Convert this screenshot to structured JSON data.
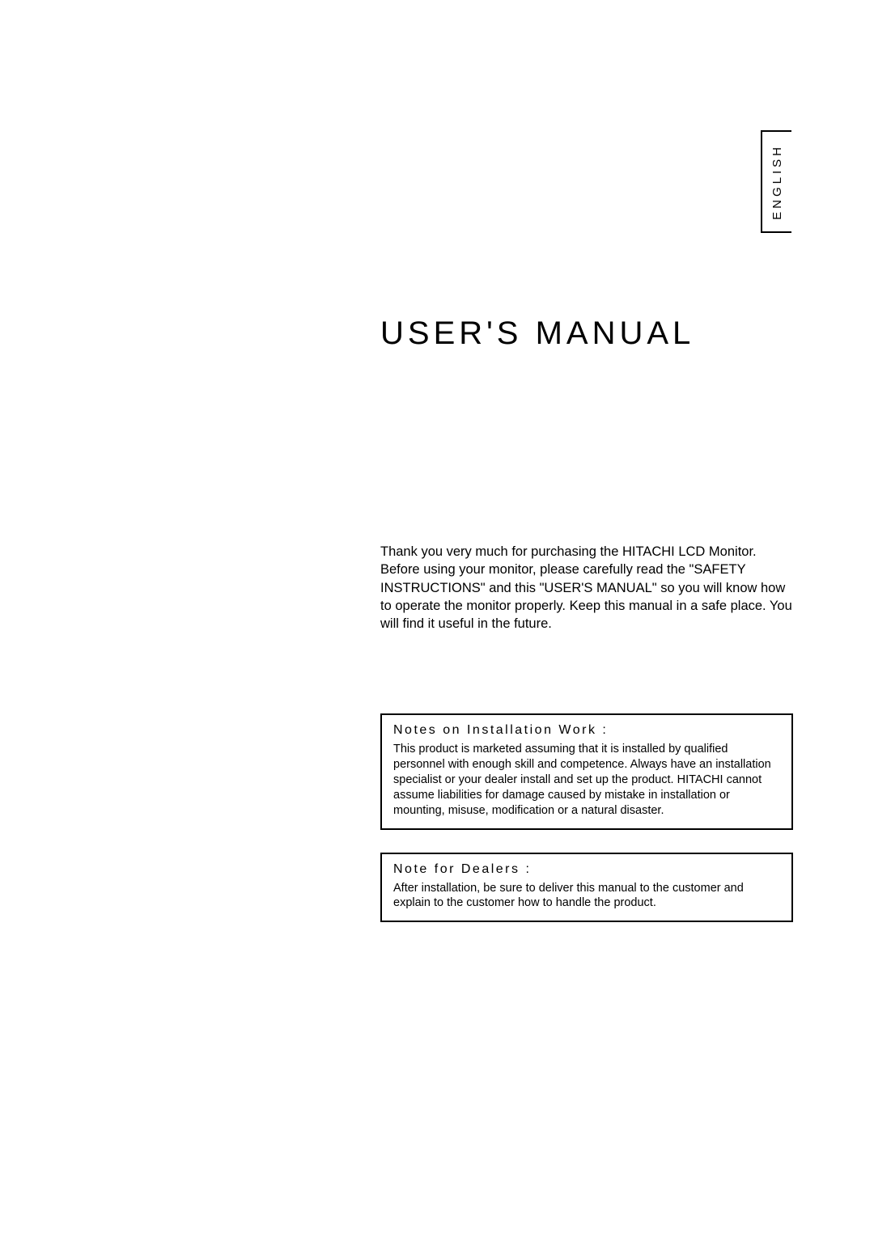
{
  "language_tab": "ENGLISH",
  "title": "USER'S MANUAL",
  "intro": "Thank you very much for purchasing the HITACHI LCD Monitor. Before using your monitor, please carefully read the \"SAFETY INSTRUCTIONS\" and this \"USER'S MANUAL\" so you will know how to operate the monitor properly. Keep this manual in a safe place. You will find it useful in the future.",
  "notes": {
    "installation": {
      "heading": "Notes on Installation Work :",
      "body": "This product is marketed assuming that it is installed by qualified personnel with enough skill and competence. Always have an installation specialist or your dealer install and set up the product. HITACHI cannot assume liabilities for damage caused by mistake in installation or mounting, misuse, modification or a natural disaster."
    },
    "dealers": {
      "heading": "Note for Dealers :",
      "body": "After installation, be sure to deliver this manual to the customer and explain to the customer how to handle the product."
    }
  }
}
